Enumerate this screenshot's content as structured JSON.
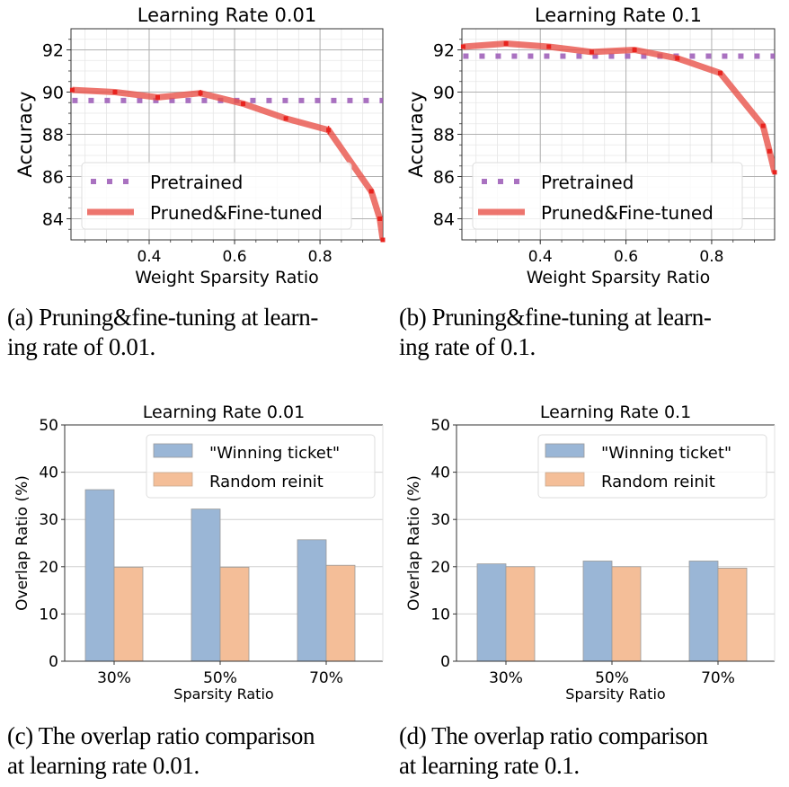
{
  "captions": {
    "a": [
      "(a) Pruning&fine-tuning at learn-",
      "ing rate of 0.01."
    ],
    "b": [
      "(b) Pruning&fine-tuning at learn-",
      "ing rate of 0.1."
    ],
    "c": [
      "(c) The overlap ratio comparison",
      "at learning rate 0.01."
    ],
    "d": [
      "(d) The overlap ratio comparison",
      "at learning rate 0.1."
    ]
  },
  "colors": {
    "pretrained": "#9b59b6",
    "pruned": "#e8534a",
    "marker": "#e8231e",
    "winning": "#9ab6d6",
    "random": "#f4be98",
    "grid_major": "#b0b0b0",
    "grid_minor": "#e6e6e6"
  },
  "chart_data": [
    {
      "id": "a",
      "type": "line",
      "title": "Learning Rate 0.01",
      "xlabel": "Weight Sparsity Ratio",
      "ylabel": "Accuracy",
      "xlim": [
        0.217,
        0.947
      ],
      "ylim": [
        83.0,
        93.0
      ],
      "xticks": [
        0.4,
        0.6,
        0.8
      ],
      "xtick_labels": [
        "0.4",
        "0.6",
        "0.8"
      ],
      "yticks": [
        84,
        86,
        88,
        90,
        92
      ],
      "ytick_labels": [
        "84",
        "86",
        "88",
        "90",
        "92"
      ],
      "grid": true,
      "legend_position": "lower-left",
      "series": [
        {
          "name": "Pretrained",
          "style": "dotted",
          "x": [
            0.22,
            0.947
          ],
          "y": [
            89.6,
            89.6
          ]
        },
        {
          "name": "Pruned&Fine-tuned",
          "style": "solid",
          "x": [
            0.22,
            0.32,
            0.42,
            0.52,
            0.62,
            0.72,
            0.82,
            0.92,
            0.94,
            0.947
          ],
          "y": [
            90.1,
            90.0,
            89.75,
            89.95,
            89.45,
            88.75,
            88.2,
            85.3,
            84.0,
            83.0
          ],
          "err": [
            0.05,
            0.05,
            0.1,
            0.15,
            0.1,
            0.08,
            0.2,
            0.08,
            0.05,
            0.0
          ]
        }
      ]
    },
    {
      "id": "b",
      "type": "line",
      "title": "Learning Rate 0.1",
      "xlabel": "Weight Sparsity Ratio",
      "ylabel": "Accuracy",
      "xlim": [
        0.217,
        0.947
      ],
      "ylim": [
        83.0,
        93.0
      ],
      "xticks": [
        0.4,
        0.6,
        0.8
      ],
      "xtick_labels": [
        "0.4",
        "0.6",
        "0.8"
      ],
      "yticks": [
        84,
        86,
        88,
        90,
        92
      ],
      "ytick_labels": [
        "84",
        "86",
        "88",
        "90",
        "92"
      ],
      "grid": true,
      "legend_position": "lower-left",
      "series": [
        {
          "name": "Pretrained",
          "style": "dotted",
          "x": [
            0.22,
            0.947
          ],
          "y": [
            91.7,
            91.7
          ]
        },
        {
          "name": "Pruned&Fine-tuned",
          "style": "solid",
          "x": [
            0.22,
            0.32,
            0.42,
            0.52,
            0.62,
            0.72,
            0.82,
            0.92,
            0.935,
            0.947
          ],
          "y": [
            92.15,
            92.3,
            92.15,
            91.9,
            92.0,
            91.6,
            90.9,
            88.4,
            87.2,
            86.2
          ],
          "err": [
            0.05,
            0.05,
            0.05,
            0.05,
            0.05,
            0.08,
            0.05,
            0.1,
            0.05,
            0.05
          ]
        }
      ]
    },
    {
      "id": "c",
      "type": "bar",
      "title": "Learning Rate 0.01",
      "xlabel": "Sparsity Ratio",
      "ylabel": "Overlap Ratio (%)",
      "categories": [
        "30%",
        "50%",
        "70%"
      ],
      "ylim": [
        0,
        50
      ],
      "yticks": [
        0,
        10,
        20,
        30,
        40,
        50
      ],
      "ytick_labels": [
        "0",
        "10",
        "20",
        "30",
        "40",
        "50"
      ],
      "grid": true,
      "legend_position": "top-right",
      "series": [
        {
          "name": "\"Winning ticket\"",
          "values": [
            36.3,
            32.2,
            25.7
          ]
        },
        {
          "name": "Random reinit",
          "values": [
            19.9,
            19.9,
            20.3
          ]
        }
      ]
    },
    {
      "id": "d",
      "type": "bar",
      "title": "Learning Rate 0.1",
      "xlabel": "Sparsity Ratio",
      "ylabel": "Overlap Ratio (%)",
      "categories": [
        "30%",
        "50%",
        "70%"
      ],
      "ylim": [
        0,
        50
      ],
      "yticks": [
        0,
        10,
        20,
        30,
        40,
        50
      ],
      "ytick_labels": [
        "0",
        "10",
        "20",
        "30",
        "40",
        "50"
      ],
      "grid": true,
      "legend_position": "top-right",
      "series": [
        {
          "name": "\"Winning ticket\"",
          "values": [
            20.6,
            21.2,
            21.2
          ]
        },
        {
          "name": "Random reinit",
          "values": [
            20.0,
            20.0,
            19.7
          ]
        }
      ]
    }
  ]
}
